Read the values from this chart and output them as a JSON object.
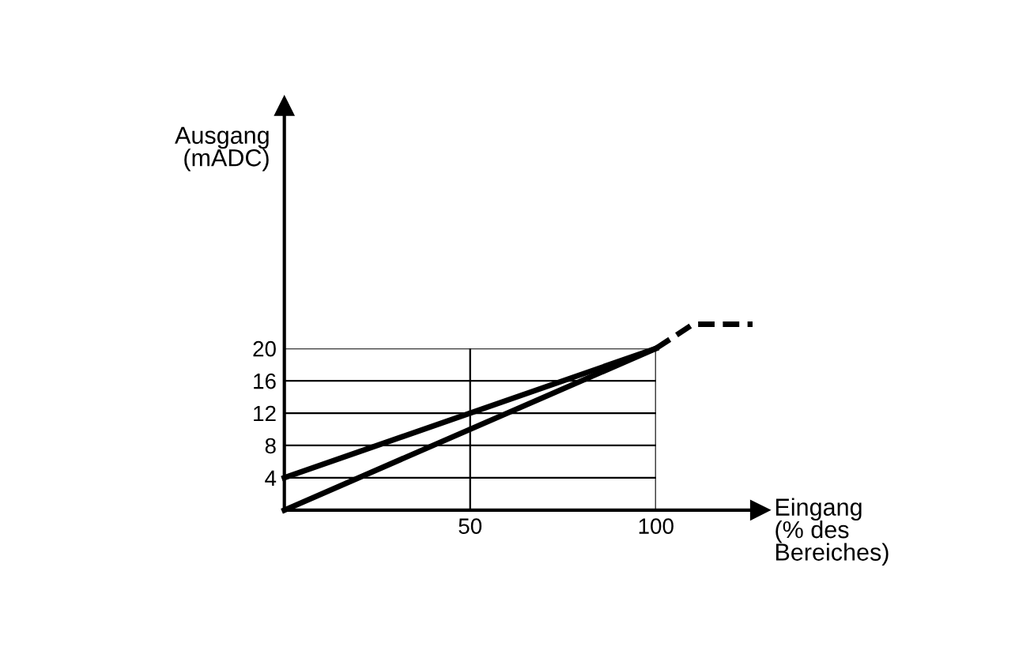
{
  "chart_data": {
    "type": "line",
    "xlabel": "Eingang\n(% des\nBereiches)",
    "ylabel": "Ausgang\n(mADC)",
    "xlim": [
      0,
      128
    ],
    "ylim": [
      0,
      50
    ],
    "xticks": [
      50,
      100
    ],
    "yticks": [
      4,
      8,
      12,
      16,
      20
    ],
    "grid": true,
    "series": [
      {
        "color": "#000000",
        "x": [
          0,
          100
        ],
        "values": [
          4,
          20
        ],
        "line_style": "solid"
      },
      {
        "color": "#000000",
        "x": [
          0,
          100
        ],
        "values": [
          0,
          20
        ],
        "line_style": "solid"
      },
      {
        "color": "#000000",
        "x": [
          100,
          110,
          126
        ],
        "values": [
          20,
          23,
          23
        ],
        "line_style": "dashed"
      }
    ]
  }
}
